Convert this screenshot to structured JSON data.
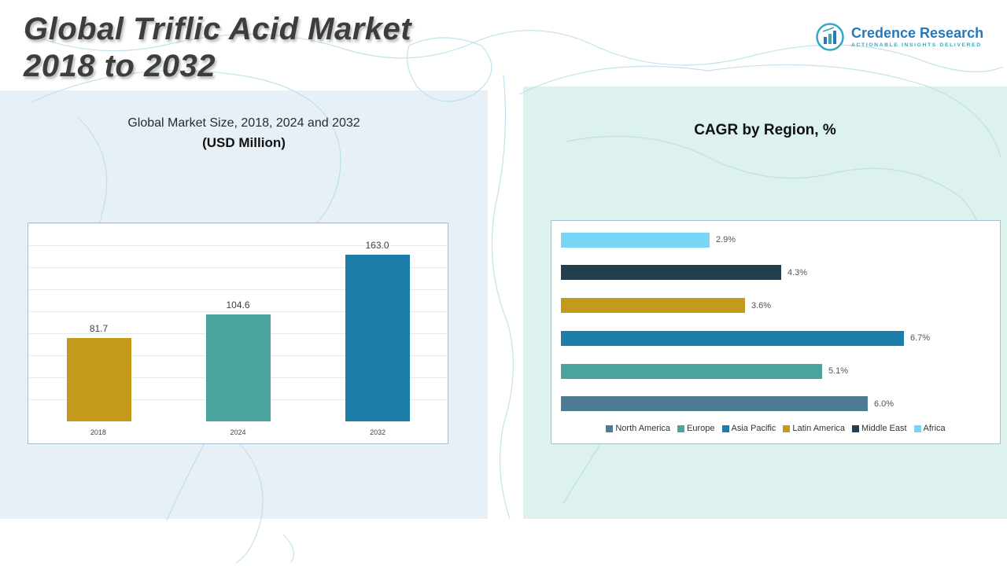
{
  "page": {
    "title_line1": "Global Triflic Acid Market",
    "title_line2": "2018 to 2032"
  },
  "logo": {
    "name": "Credence Research",
    "tagline": "Actionable Insights Delivered"
  },
  "panels": {
    "market_size": {
      "title_line1": "Global Market Size, 2018, 2024 and 2032",
      "title_line2": "(USD Million)"
    },
    "cagr": {
      "title": "CAGR by Region, %"
    }
  },
  "chart_data": [
    {
      "type": "bar",
      "title": "Global Market Size, 2018, 2024 and 2032 (USD Million)",
      "categories": [
        "2018",
        "2024",
        "2032"
      ],
      "values": [
        81.7,
        104.6,
        163.0
      ],
      "value_labels": [
        "81.7",
        "104.6",
        "163.0"
      ],
      "colors": [
        "#c49a1c",
        "#4aa39c",
        "#1b7da8"
      ],
      "xlabel": "",
      "ylabel": "USD Million",
      "ylim": [
        0,
        180
      ],
      "grid": true
    },
    {
      "type": "bar",
      "orientation": "horizontal",
      "title": "CAGR by Region, %",
      "categories": [
        "Africa",
        "Middle East",
        "Latin America",
        "Asia Pacific",
        "Europe",
        "North America"
      ],
      "values": [
        2.9,
        4.3,
        3.6,
        6.7,
        5.1,
        6.0
      ],
      "value_labels": [
        "2.9%",
        "4.3%",
        "3.6%",
        "6.7%",
        "5.1%",
        "6.0%"
      ],
      "colors": [
        "#76d6f4",
        "#24404e",
        "#c49a1c",
        "#1b7da8",
        "#4aa39c",
        "#4e7a94"
      ],
      "xlim": [
        0,
        7
      ],
      "legend_position": "bottom",
      "legend": [
        "North America",
        "Europe",
        "Asia Pacific",
        "Latin America",
        "Middle East",
        "Africa"
      ],
      "legend_colors": [
        "#4e7a94",
        "#4aa39c",
        "#1b7da8",
        "#c49a1c",
        "#24404e",
        "#76d6f4"
      ]
    }
  ]
}
